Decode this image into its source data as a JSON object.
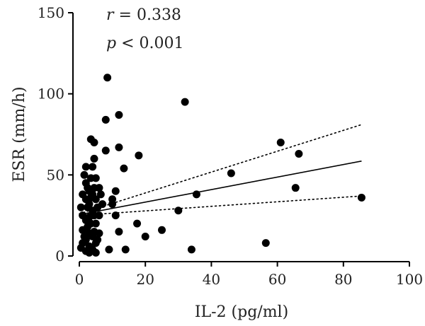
{
  "chart_data": {
    "type": "scatter",
    "xlabel": "IL-2 (pg/ml)",
    "ylabel": "ESR (mm/h)",
    "xlim": [
      0,
      100
    ],
    "ylim": [
      0,
      150
    ],
    "xticks": [
      0,
      20,
      40,
      60,
      80,
      100
    ],
    "yticks": [
      0,
      50,
      100,
      150
    ],
    "grid": false,
    "annotations": {
      "r_symbol": "r",
      "r_rest": " = 0.338",
      "p_symbol": "p",
      "p_rest": " < 0.001"
    },
    "points": [
      [
        0.5,
        30
      ],
      [
        0.5,
        5
      ],
      [
        1,
        38
      ],
      [
        1,
        25
      ],
      [
        1,
        16
      ],
      [
        1,
        8
      ],
      [
        1.5,
        50
      ],
      [
        1.5,
        12
      ],
      [
        2,
        55
      ],
      [
        2,
        45
      ],
      [
        2,
        35
      ],
      [
        2,
        22
      ],
      [
        2,
        10
      ],
      [
        2,
        3
      ],
      [
        2.5,
        42
      ],
      [
        2.5,
        30
      ],
      [
        2.5,
        18
      ],
      [
        3,
        40
      ],
      [
        3,
        32
      ],
      [
        3,
        24
      ],
      [
        3,
        14
      ],
      [
        3,
        6
      ],
      [
        3,
        2
      ],
      [
        3.5,
        72
      ],
      [
        3.5,
        48
      ],
      [
        3.5,
        36
      ],
      [
        3.5,
        20
      ],
      [
        4,
        55
      ],
      [
        4,
        38
      ],
      [
        4,
        28
      ],
      [
        4,
        12
      ],
      [
        4,
        4
      ],
      [
        4.5,
        70
      ],
      [
        4.5,
        60
      ],
      [
        4.5,
        42
      ],
      [
        4.5,
        25
      ],
      [
        4.5,
        15
      ],
      [
        5,
        48
      ],
      [
        5,
        35
      ],
      [
        5,
        20
      ],
      [
        5,
        8
      ],
      [
        5,
        2
      ],
      [
        5.5,
        30
      ],
      [
        5.5,
        10
      ],
      [
        6,
        42
      ],
      [
        6,
        25
      ],
      [
        6,
        14
      ],
      [
        6.5,
        38
      ],
      [
        7,
        32
      ],
      [
        8,
        84
      ],
      [
        8,
        65
      ],
      [
        8.5,
        110
      ],
      [
        9,
        4
      ],
      [
        10,
        35
      ],
      [
        10,
        32
      ],
      [
        11,
        25
      ],
      [
        11,
        40
      ],
      [
        12,
        87
      ],
      [
        12,
        67
      ],
      [
        12,
        15
      ],
      [
        13.5,
        54
      ],
      [
        14,
        4
      ],
      [
        17.5,
        20
      ],
      [
        18,
        62
      ],
      [
        20,
        12
      ],
      [
        25,
        16
      ],
      [
        30,
        28
      ],
      [
        32,
        95
      ],
      [
        34,
        4
      ],
      [
        35.5,
        38
      ],
      [
        46,
        51
      ],
      [
        56.5,
        8
      ],
      [
        61,
        70
      ],
      [
        65.5,
        42
      ],
      [
        66.5,
        63
      ],
      [
        85.5,
        36
      ]
    ],
    "regression": {
      "x": [
        0,
        85.5
      ],
      "y": [
        25.5,
        58.5
      ]
    },
    "ci_upper": {
      "x": [
        0,
        85.5
      ],
      "y": [
        26,
        81
      ]
    },
    "ci_lower": {
      "x": [
        0,
        85.5
      ],
      "y": [
        25,
        37
      ]
    }
  }
}
